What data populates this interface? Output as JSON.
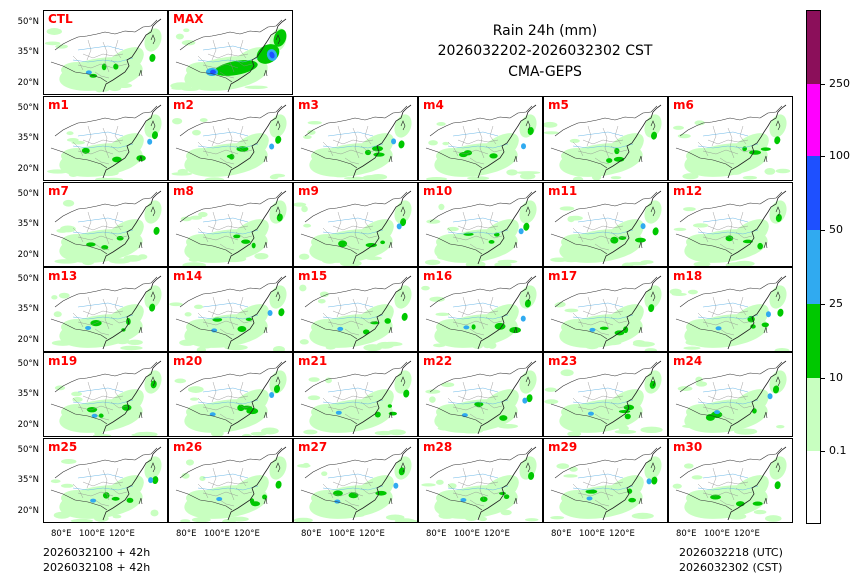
{
  "title": {
    "line1": "Rain 24h (mm)",
    "line2": "2026032202-2026032302 CST",
    "line3": "CMA-GEPS"
  },
  "panel_labels": [
    "CTL",
    "MAX",
    "m1",
    "m2",
    "m3",
    "m4",
    "m5",
    "m6",
    "m7",
    "m8",
    "m9",
    "m10",
    "m11",
    "m12",
    "m13",
    "m14",
    "m15",
    "m16",
    "m17",
    "m18",
    "m19",
    "m20",
    "m21",
    "m22",
    "m23",
    "m24",
    "m25",
    "m26",
    "m27",
    "m28",
    "m29",
    "m30"
  ],
  "lat_ticks": [
    "50°N",
    "35°N",
    "20°N"
  ],
  "lon_ticks": [
    "80°E",
    "100°E",
    "120°E"
  ],
  "colorbar": {
    "colors": [
      "#ffffff",
      "#c8ffc0",
      "#00c800",
      "#30aaf0",
      "#1e50ff",
      "#ff00ff",
      "#8b0f5a"
    ],
    "levels": [
      "0.1",
      "10",
      "25",
      "50",
      "100",
      "250"
    ]
  },
  "footer": {
    "left_line1": "2026032100 + 42h",
    "left_line2": "2026032108 + 42h",
    "right_line1": "2026032218 (UTC)",
    "right_line2": "2026032302 (CST)"
  }
}
